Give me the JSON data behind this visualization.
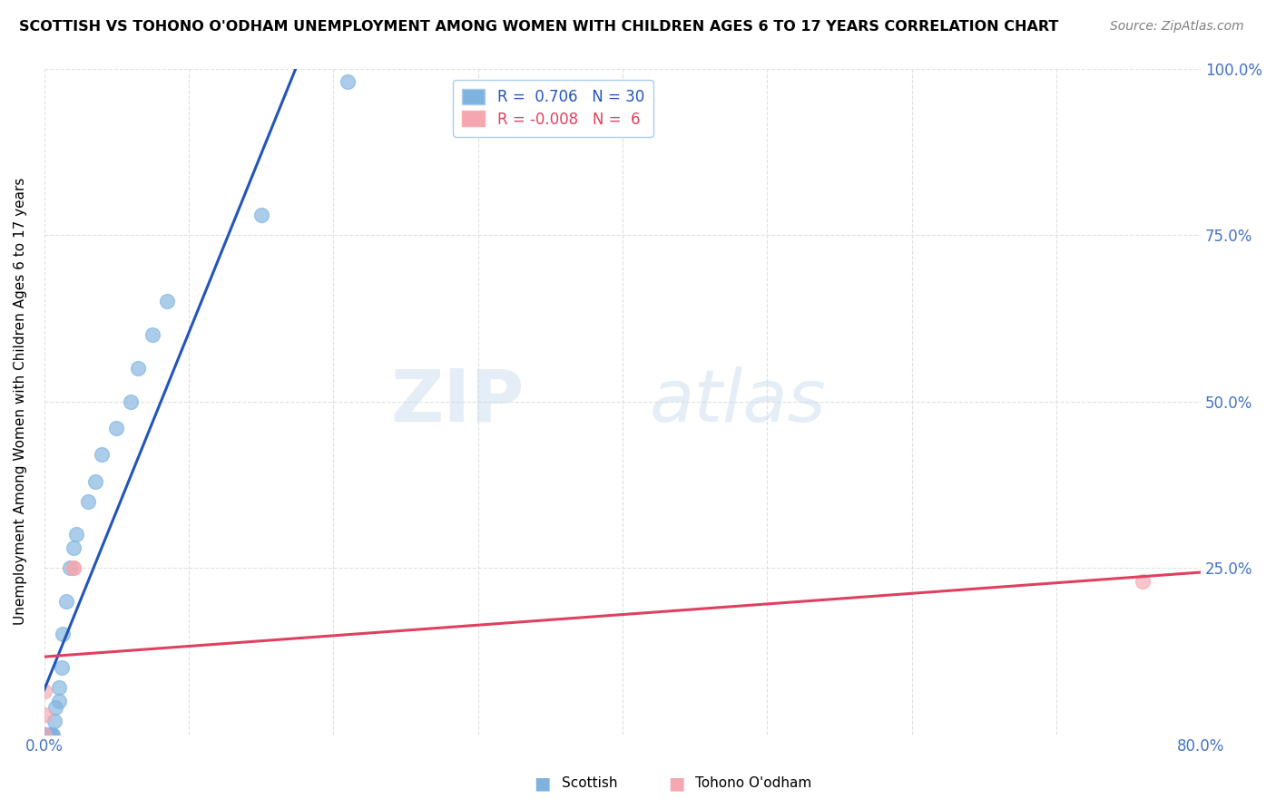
{
  "title": "SCOTTISH VS TOHONO O'ODHAM UNEMPLOYMENT AMONG WOMEN WITH CHILDREN AGES 6 TO 17 YEARS CORRELATION CHART",
  "source": "Source: ZipAtlas.com",
  "ylabel": "Unemployment Among Women with Children Ages 6 to 17 years",
  "xlim": [
    0.0,
    0.8
  ],
  "ylim": [
    0.0,
    1.0
  ],
  "watermark_zip": "ZIP",
  "watermark_atlas": "atlas",
  "legend_R_blue": "0.706",
  "legend_N_blue": "30",
  "legend_R_pink": "-0.008",
  "legend_N_pink": " 6",
  "blue_color": "#7EB3E0",
  "pink_color": "#F4A7B0",
  "trend_blue_color": "#2255BB",
  "trend_pink_color": "#E04060",
  "blue_scatter_x": [
    0.0,
    0.0,
    0.0,
    0.0,
    0.0,
    0.002,
    0.003,
    0.004,
    0.005,
    0.006,
    0.007,
    0.008,
    0.01,
    0.01,
    0.012,
    0.013,
    0.015,
    0.018,
    0.02,
    0.022,
    0.03,
    0.035,
    0.04,
    0.05,
    0.06,
    0.065,
    0.075,
    0.085,
    0.15,
    0.21
  ],
  "blue_scatter_y": [
    0.0,
    0.0,
    0.0,
    0.0,
    0.0,
    0.0,
    0.0,
    0.0,
    0.0,
    0.0,
    0.02,
    0.04,
    0.05,
    0.07,
    0.1,
    0.15,
    0.2,
    0.25,
    0.28,
    0.3,
    0.35,
    0.38,
    0.42,
    0.46,
    0.5,
    0.55,
    0.6,
    0.65,
    0.78,
    0.98
  ],
  "pink_scatter_x": [
    0.0,
    0.0,
    0.0,
    0.02,
    0.02,
    0.76
  ],
  "pink_scatter_y": [
    0.0,
    0.03,
    0.065,
    0.25,
    0.25,
    0.23
  ],
  "background_color": "#FFFFFF",
  "grid_color": "#DDDDDD",
  "tick_color": "#4472C4"
}
